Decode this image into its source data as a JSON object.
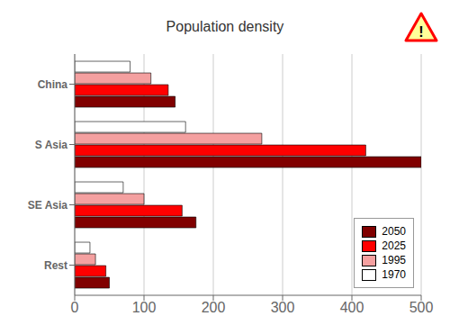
{
  "chart_data": {
    "type": "bar",
    "title": "Population density",
    "orientation": "horizontal",
    "categories": [
      "China",
      "S Asia",
      "SE Asia",
      "Rest"
    ],
    "series": [
      {
        "name": "1970",
        "color": "#ffffff",
        "values": [
          80,
          160,
          70,
          22
        ]
      },
      {
        "name": "1995",
        "color": "#f4a0a0",
        "values": [
          110,
          270,
          100,
          30
        ]
      },
      {
        "name": "2025",
        "color": "#ff0000",
        "values": [
          135,
          420,
          155,
          45
        ]
      },
      {
        "name": "2050",
        "color": "#800000",
        "values": [
          145,
          500,
          175,
          50
        ]
      }
    ],
    "xlim": [
      0,
      500
    ],
    "xticks": [
      0,
      100,
      200,
      300,
      400,
      500
    ],
    "grid": true,
    "legend": "lower right",
    "annotations": [
      "!"
    ]
  }
}
